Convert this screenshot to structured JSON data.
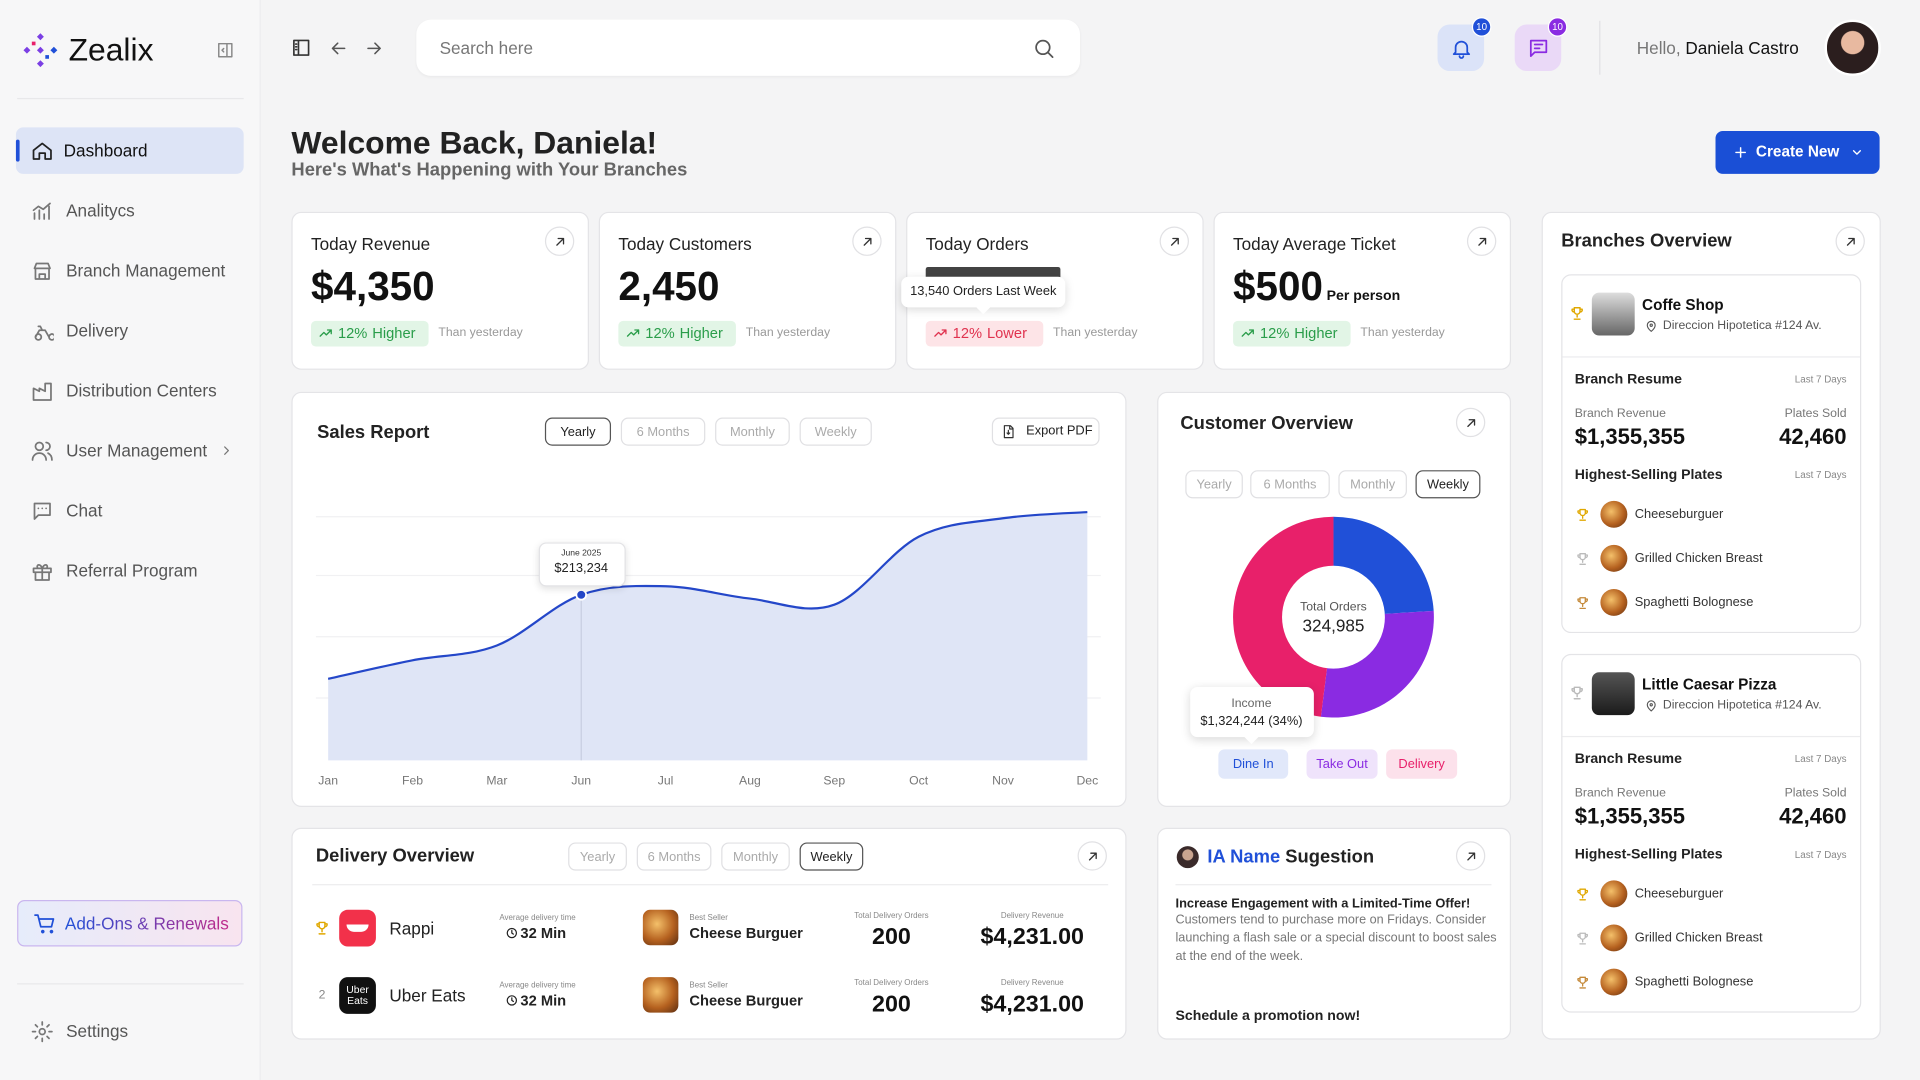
{
  "sidebar": {
    "brand": "Zealix",
    "nav": [
      "Dashboard",
      "Analitycs",
      "Branch Management",
      "Delivery",
      "Distribution Centers",
      "User Management",
      "Chat",
      "Referral Program"
    ],
    "addons": "Add-Ons & Renewals",
    "settings": "Settings"
  },
  "topbar": {
    "search_placeholder": "Search here",
    "notifications": "10",
    "messages": "10",
    "greeting": "Hello,",
    "user": "Daniela Castro"
  },
  "header": {
    "title": "Welcome Back, Daniela!",
    "subtitle": "Here's What's Happening with Your Branches",
    "button": "Create New"
  },
  "kpis": [
    {
      "label": "Today Revenue",
      "value": "$4,350",
      "change": "12%",
      "direction": "Higher",
      "note": "Than yesterday"
    },
    {
      "label": "Today Customers",
      "value": "2,450",
      "change": "12%",
      "direction": "Higher",
      "note": "Than yesterday"
    },
    {
      "label": "Today Orders",
      "tooltip": "13,540 Orders Last Week",
      "change": "12%",
      "direction": "Lower",
      "note": "Than yesterday"
    },
    {
      "label": "Today Average Ticket",
      "value": "$500",
      "suffix": "Per person",
      "change": "12%",
      "direction": "Higher",
      "note": "Than yesterday"
    }
  ],
  "sales_report": {
    "filters": [
      "Yearly",
      "6 Months",
      "Monthly",
      "Weekly"
    ],
    "export": "Export PDF",
    "tooltip_title": "June 2025"
  },
  "customer_overview": {
    "filters": [
      "Yearly",
      "6 Months",
      "Monthly",
      "Weekly"
    ]
  },
  "chart_data": [
    {
      "type": "line",
      "title": "Sales Report",
      "categories": [
        "Jan",
        "Feb",
        "Mar",
        "Jun",
        "Jul",
        "Aug",
        "Sep",
        "Oct",
        "Nov",
        "Dec"
      ],
      "values": [
        105000,
        128900,
        148000,
        213234,
        224300,
        208400,
        200500,
        288000,
        311800,
        319800
      ],
      "value_labels": [
        null,
        null,
        null,
        "$213,234",
        null,
        null,
        null,
        null,
        null,
        null
      ],
      "color": "#2447c9",
      "ylim": [
        0,
        380000
      ]
    },
    {
      "type": "pie",
      "title": "Customer Overview",
      "categories": [
        "Dine In",
        "Take Out",
        "Delivery"
      ],
      "values": [
        24,
        28,
        48
      ],
      "colors": [
        "#2050d8",
        "#8a2be2",
        "#e8206a"
      ],
      "center_label": "Total Orders",
      "center_value": "324,985",
      "tooltip_label": "Income",
      "tooltip_text": "$1,324,244 (34%)"
    }
  ],
  "delivery_overview": {
    "title": "Delivery Overview",
    "filters": [
      "Yearly",
      "6 Months",
      "Monthly",
      "Weekly"
    ],
    "rows": [
      {
        "name": "Rappi",
        "time_label": "Average delivery time",
        "time": "32 Min",
        "best_label": "Best Seller",
        "best": "Cheese Burguer",
        "orders_label": "Total Delivery Orders",
        "orders": "200",
        "revenue_label": "Delivery Revenue",
        "revenue": "$4,231.00"
      },
      {
        "rank": "2",
        "logo": [
          "Uber",
          "Eats"
        ],
        "name": "Uber Eats",
        "time_label": "Average delivery time",
        "time": "32 Min",
        "best_label": "Best Seller",
        "best": "Cheese Burguer",
        "orders_label": "Total Delivery Orders",
        "orders": "200",
        "revenue_label": "Delivery Revenue",
        "revenue": "$4,231.00"
      }
    ]
  },
  "ai_suggestion": {
    "name": "IA Name",
    "title": "Sugestion",
    "heading": "Increase Engagement with a Limited-Time Offer!",
    "body": "Customers tend to purchase more on Fridays. Consider launching a flash sale or a special discount to boost sales at the end of the week.",
    "cta": "Schedule a promotion now!"
  },
  "branches": {
    "title": "Branches Overview",
    "items": [
      {
        "name": "Coffe Shop",
        "address": "Direccion Hipotetica #124 Av.",
        "resume": "Branch Resume",
        "period": "Last 7 Days",
        "revenue_label": "Branch Revenue",
        "revenue": "$1,355,355",
        "plates_label": "Plates Sold",
        "plates": "42,460",
        "top_title": "Highest-Selling Plates",
        "top_period": "Last 7 Days",
        "top_plates": [
          "Cheeseburguer",
          "Grilled Chicken Breast",
          "Spaghetti Bolognese"
        ]
      },
      {
        "name": "Little Caesar Pizza",
        "address": "Direccion Hipotetica #124 Av.",
        "resume": "Branch Resume",
        "period": "Last 7 Days",
        "revenue_label": "Branch Revenue",
        "revenue": "$1,355,355",
        "plates_label": "Plates Sold",
        "plates": "42,460",
        "top_title": "Highest-Selling Plates",
        "top_period": "Last 7 Days",
        "top_plates": [
          "Cheeseburguer",
          "Grilled Chicken Breast",
          "Spaghetti Bolognese"
        ]
      }
    ]
  }
}
